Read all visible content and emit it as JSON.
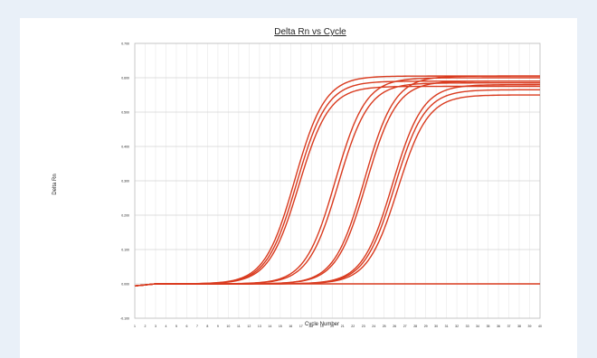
{
  "chart_data": {
    "type": "line",
    "title": "Delta Rn vs Cycle",
    "xlabel": "Cycle Number",
    "ylabel": "Delta Rn",
    "x": [
      1,
      2,
      3,
      4,
      5,
      6,
      7,
      8,
      9,
      10,
      11,
      12,
      13,
      14,
      15,
      16,
      17,
      18,
      19,
      20,
      21,
      22,
      23,
      24,
      25,
      26,
      27,
      28,
      29,
      30,
      31,
      32,
      33,
      34,
      35,
      36,
      37,
      38,
      39,
      40
    ],
    "xlim": [
      1,
      40
    ],
    "ylim": [
      -0.1,
      0.7
    ],
    "yticks": [
      -0.1,
      0.0,
      0.1,
      0.2,
      0.3,
      0.4,
      0.5,
      0.6,
      0.7
    ],
    "grid": true,
    "line_color": "#d93a1e",
    "series": [
      {
        "midpoint": 16.4,
        "slope": 1.45,
        "plateau": 0.605,
        "baseline": 0.0
      },
      {
        "midpoint": 16.6,
        "slope": 1.45,
        "plateau": 0.59,
        "baseline": 0.0
      },
      {
        "midpoint": 16.8,
        "slope": 1.45,
        "plateau": 0.575,
        "baseline": 0.0
      },
      {
        "midpoint": 20.3,
        "slope": 1.45,
        "plateau": 0.6,
        "baseline": 0.0
      },
      {
        "midpoint": 20.6,
        "slope": 1.45,
        "plateau": 0.585,
        "baseline": 0.0
      },
      {
        "midpoint": 23.1,
        "slope": 1.45,
        "plateau": 0.605,
        "baseline": 0.0
      },
      {
        "midpoint": 23.3,
        "slope": 1.45,
        "plateau": 0.59,
        "baseline": 0.0
      },
      {
        "midpoint": 25.8,
        "slope": 1.45,
        "plateau": 0.58,
        "baseline": 0.0
      },
      {
        "midpoint": 26.0,
        "slope": 1.45,
        "plateau": 0.565,
        "baseline": 0.0
      },
      {
        "midpoint": 26.3,
        "slope": 1.45,
        "plateau": 0.55,
        "baseline": 0.0
      },
      {
        "midpoint": 60,
        "slope": 2.0,
        "plateau": 0.0,
        "baseline": 0.0
      }
    ]
  }
}
